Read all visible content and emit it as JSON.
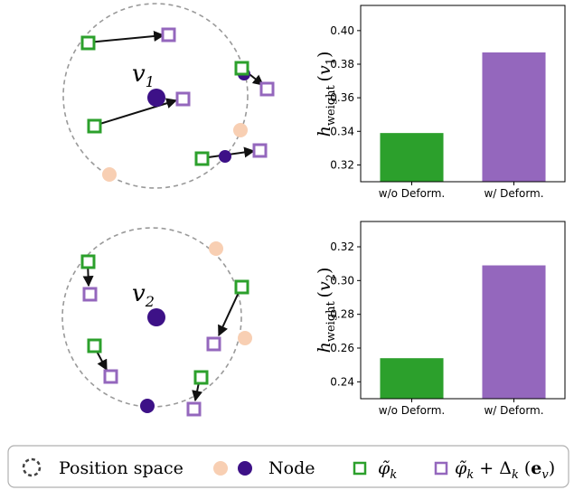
{
  "panels": [
    {
      "node_label": "v",
      "node_subscript": "1",
      "ylabel_main": "h",
      "ylabel_sub": "weight",
      "ylabel_arg": "v",
      "ylabel_arg_sub": "1"
    },
    {
      "node_label": "v",
      "node_subscript": "2",
      "ylabel_main": "h",
      "ylabel_sub": "weight",
      "ylabel_arg": "v",
      "ylabel_arg_sub": "2"
    }
  ],
  "legend": {
    "position_space": "Position space",
    "node": "Node",
    "phi": "φ̃",
    "phi_sub": "k",
    "phi_delta": "φ̃",
    "phi_delta_sub": "k",
    "plus": " + Δ",
    "delta_sub": "k",
    "paren_open": " (",
    "e_bold": "e",
    "e_sub": "v",
    "paren_close": ")"
  },
  "colors": {
    "green": "#2ca02c",
    "purple": "#9467bd",
    "node_dark": "#3d1187",
    "node_light": "#f8cfb3",
    "circle": "#9a9a9a"
  },
  "chart_data": [
    {
      "type": "bar",
      "categories": [
        "w/o Deform.",
        "w/ Deform."
      ],
      "values": [
        0.339,
        0.387
      ],
      "ylim": [
        0.31,
        0.415
      ],
      "yticks": [
        "0.32",
        "0.34",
        "0.36",
        "0.38",
        "0.40"
      ],
      "ytick_values": [
        0.32,
        0.34,
        0.36,
        0.38,
        0.4
      ],
      "bar_colors": [
        "#2ca02c",
        "#9467bd"
      ]
    },
    {
      "type": "bar",
      "categories": [
        "w/o Deform.",
        "w/ Deform."
      ],
      "values": [
        0.254,
        0.309
      ],
      "ylim": [
        0.23,
        0.335
      ],
      "yticks": [
        "0.24",
        "0.26",
        "0.28",
        "0.30",
        "0.32"
      ],
      "ytick_values": [
        0.24,
        0.26,
        0.28,
        0.3,
        0.32
      ],
      "bar_colors": [
        "#2ca02c",
        "#9467bd"
      ]
    }
  ]
}
